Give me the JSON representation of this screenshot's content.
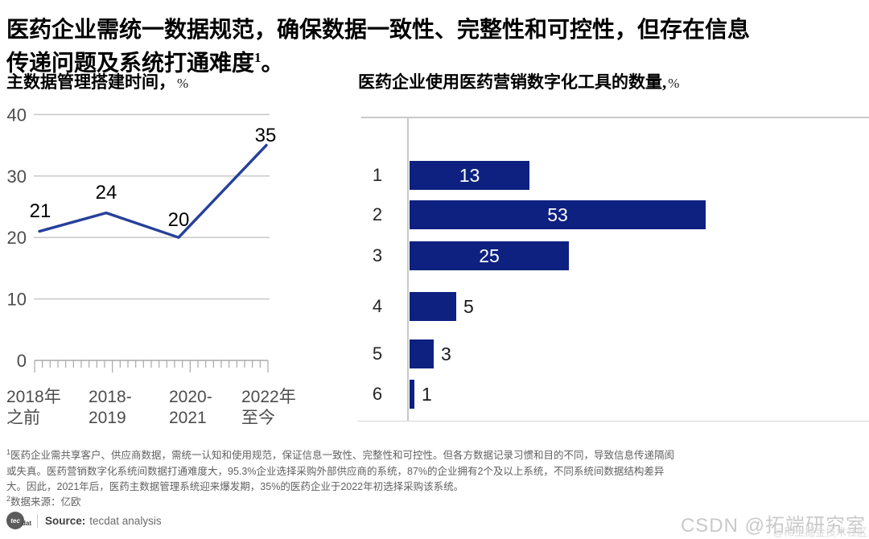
{
  "title": {
    "line1": "医药企业需统一数据规范，确保数据一致性、完整性和可控性，但存在信息",
    "line2": "传递问题及系统打通难度",
    "sup": "1",
    "tail": "。"
  },
  "chart_data": [
    {
      "type": "line",
      "title": "主数据管理搭建时间，",
      "unit": "%",
      "categories": [
        "2018年之前",
        "2018-2019",
        "2020-2021",
        "2022年至今"
      ],
      "x_labels_2line": [
        [
          "2018年",
          "之前"
        ],
        [
          "2018-",
          "2019"
        ],
        [
          "2020-",
          "2021"
        ],
        [
          "2022年",
          "至今"
        ]
      ],
      "values": [
        21,
        24,
        20,
        35
      ],
      "xlabel": "",
      "ylabel": "%",
      "ylim": [
        0,
        40
      ],
      "y_ticks": [
        40,
        30,
        20,
        10,
        0
      ],
      "grid": true,
      "legend": "none",
      "line_color": "#26409a",
      "tick_color": "#4d4d4d",
      "grid_color": "#c9c9c9"
    },
    {
      "type": "bar",
      "orientation": "horizontal",
      "title": "医药企业使用医药营销数字化工具的数量,",
      "unit": "%",
      "categories": [
        "1",
        "2",
        "3",
        "4",
        "5",
        "6"
      ],
      "values": [
        13,
        53,
        25,
        5,
        3,
        1
      ],
      "xlim": [
        0,
        60
      ],
      "grid": false,
      "legend": "none",
      "bar_color": "#0e2180",
      "value_label_inside": [
        true,
        true,
        true,
        false,
        false,
        false
      ],
      "value_label_color_inside": "#ffffff",
      "value_label_color_outside": "#1a1a1a"
    }
  ],
  "footnotes": {
    "sup1": "1",
    "line1": "医药企业需共享客户、供应商数据，需统一认知和使用规范，保证信息一致性、完整性和可控性。但各方数据记录习惯和目的不同，导致信息传递隔阂",
    "line2": "或失真。医药营销数字化系统间数据打通难度大，95.3%企业选择采购外部供应商的系统，87%的企业拥有2个及以上系统，不同系统间数据结构差异",
    "line3": "大。因此，2021年后，医药主数据管理系统迎来爆发期，35%的医药企业于2022年初选择采购该系统。",
    "sup2": "2",
    "source2": "数据来源：亿欧"
  },
  "source_bar": {
    "logo_tec": "tec",
    "logo_dat": "dat",
    "label": "Source:",
    "text": "tecdat analysis"
  },
  "watermarks": {
    "csdn": "CSDN @拓端研究室",
    "juejin": "@稀土掘金技术社区"
  }
}
